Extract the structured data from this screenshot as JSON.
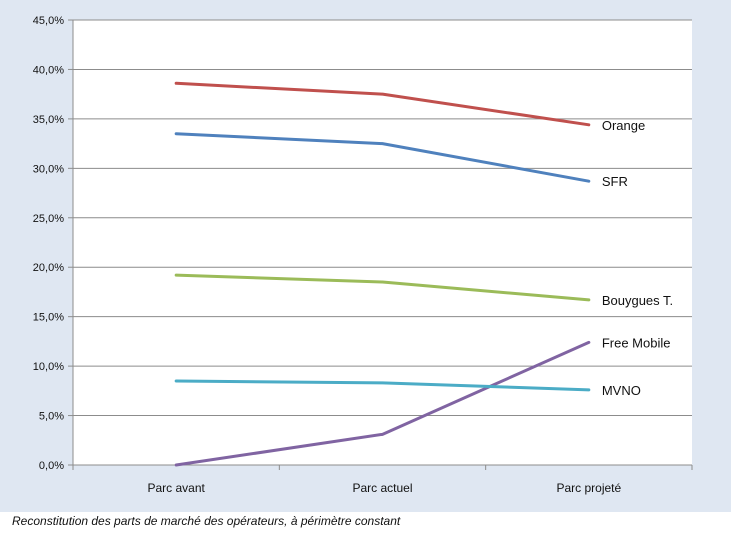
{
  "caption": "Reconstitution des parts de marché des opérateurs, à périmètre constant",
  "chart_data": {
    "type": "line",
    "title": "",
    "xlabel": "",
    "ylabel": "",
    "categories": [
      "Parc avant",
      "Parc actuel",
      "Parc projeté"
    ],
    "ylim": [
      0,
      45
    ],
    "yticks": [
      "0,0%",
      "5,0%",
      "10,0%",
      "15,0%",
      "20,0%",
      "25,0%",
      "30,0%",
      "35,0%",
      "40,0%",
      "45,0%"
    ],
    "grid": true,
    "legend": "right-end-labels",
    "series": [
      {
        "name": "Orange",
        "values": [
          38.6,
          37.5,
          34.4
        ],
        "color": "#c0504d"
      },
      {
        "name": "SFR",
        "values": [
          33.5,
          32.5,
          28.7
        ],
        "color": "#4f81bd"
      },
      {
        "name": "Bouygues T.",
        "values": [
          19.2,
          18.5,
          16.7
        ],
        "color": "#9bbb59"
      },
      {
        "name": "Free Mobile",
        "values": [
          0.0,
          3.1,
          12.4
        ],
        "color": "#8064a2"
      },
      {
        "name": "MVNO",
        "values": [
          8.5,
          8.3,
          7.6
        ],
        "color": "#4bacc6"
      }
    ]
  }
}
